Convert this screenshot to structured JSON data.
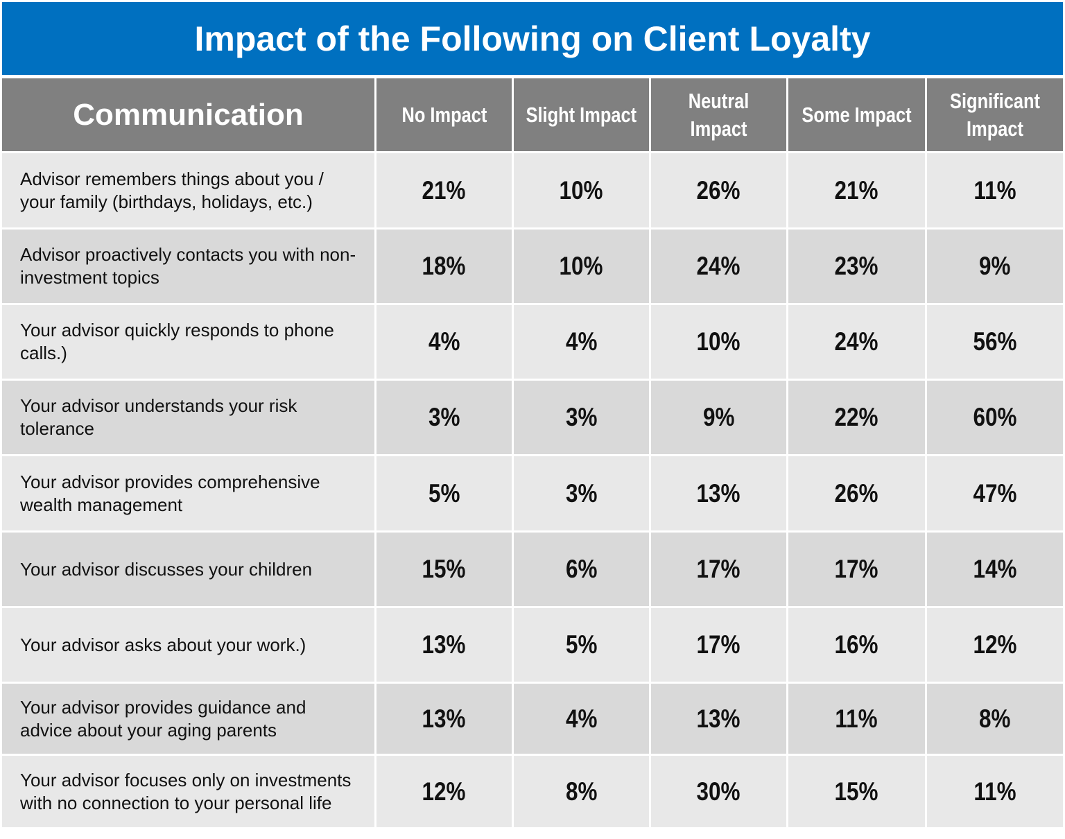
{
  "chart_data": {
    "type": "table",
    "title": "Impact of the Following on Client Loyalty",
    "row_header": "Communication",
    "columns": [
      "No Impact",
      "Slight Impact",
      "Neutral Impact",
      "Some Impact",
      "Significant Impact"
    ],
    "rows": [
      {
        "label": "Advisor remembers things about you / your family (birthdays, holidays, etc.)",
        "values": [
          "21%",
          "10%",
          "26%",
          "21%",
          "11%"
        ]
      },
      {
        "label": "Advisor proactively contacts you with non-investment topics",
        "values": [
          "18%",
          "10%",
          "24%",
          "23%",
          "9%"
        ]
      },
      {
        "label": "Your advisor quickly responds to phone calls.)",
        "values": [
          "4%",
          "4%",
          "10%",
          "24%",
          "56%"
        ]
      },
      {
        "label": "Your advisor understands your risk tolerance",
        "values": [
          "3%",
          "3%",
          "9%",
          "22%",
          "60%"
        ]
      },
      {
        "label": "Your advisor provides comprehensive wealth management",
        "values": [
          "5%",
          "3%",
          "13%",
          "26%",
          "47%"
        ]
      },
      {
        "label": "Your advisor discusses your children",
        "values": [
          "15%",
          "6%",
          "17%",
          "17%",
          "14%"
        ]
      },
      {
        "label": "Your advisor asks about your work.)",
        "values": [
          "13%",
          "5%",
          "17%",
          "16%",
          "12%"
        ]
      },
      {
        "label": "Your advisor provides guidance and advice about your aging parents",
        "values": [
          "13%",
          "4%",
          "13%",
          "11%",
          "8%"
        ]
      },
      {
        "label": "Your advisor focuses only on investments with no connection to your personal life",
        "values": [
          "12%",
          "8%",
          "30%",
          "15%",
          "11%"
        ]
      }
    ]
  },
  "colors": {
    "title_bg": "#0070c0",
    "header_bg": "#808080",
    "row_light": "#e8e8e8",
    "row_dark": "#d9d9d9"
  }
}
